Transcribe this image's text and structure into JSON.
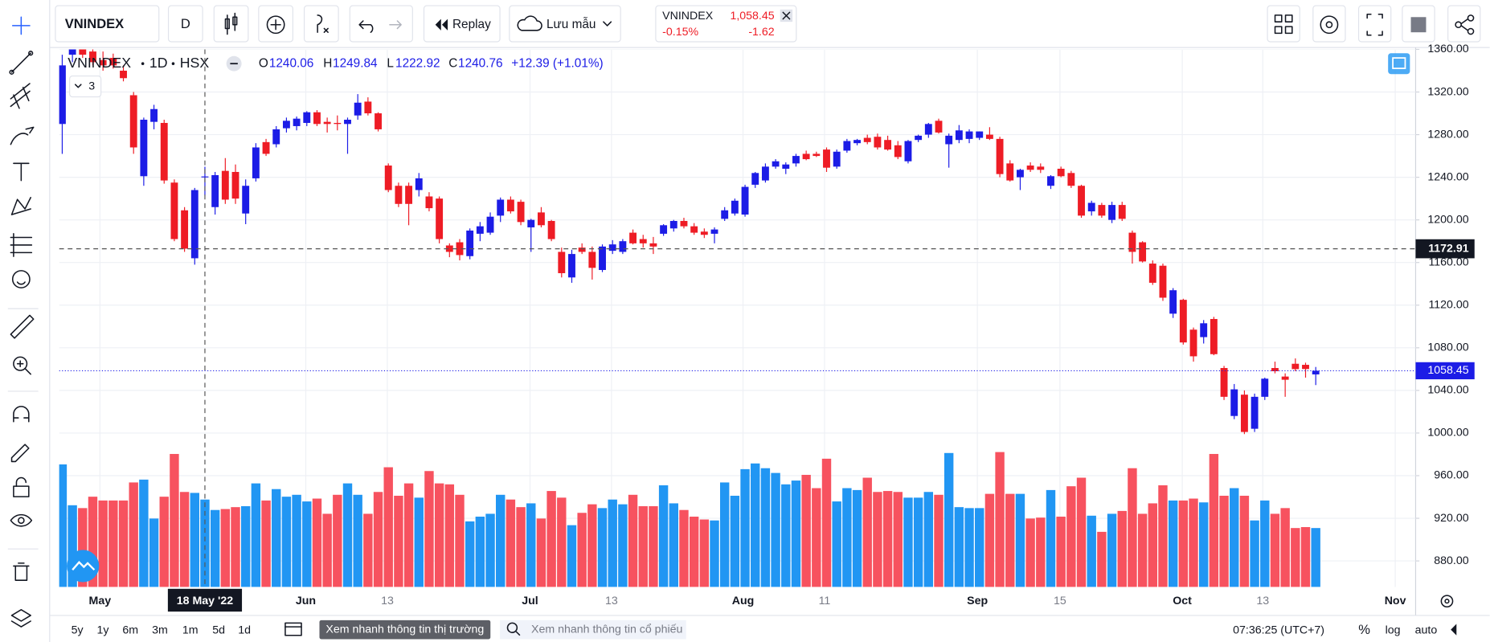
{
  "toolbar": {
    "symbol": "VNINDEX",
    "interval": "D",
    "replay": "Replay",
    "save": "Lưu mẫu"
  },
  "quote": {
    "symbol": "VNINDEX",
    "price": "1,058.45",
    "change_percent": "-0.15%",
    "change": "-1.62"
  },
  "chart_data": {
    "type": "candlestick",
    "symbol": "VNINDEX",
    "interval": "1D",
    "exchange": "HSX",
    "legend_labels": [
      "O",
      "H",
      "L",
      "C"
    ],
    "legend_change": "+12.39 (+1.01%)",
    "indicator_count": "3",
    "open": [
      1290,
      1355,
      1362,
      1358,
      1350,
      1352,
      1340,
      1317,
      1241,
      1292,
      1291,
      1235,
      1209,
      1164,
      1240.06,
      1212,
      1246,
      1245,
      1206,
      1239,
      1273,
      1271,
      1286,
      1288,
      1291,
      1301,
      1292,
      1291,
      1290,
      1298,
      1311,
      1300,
      1251,
      1232,
      1232,
      1228,
      1222,
      1220,
      1176,
      1179,
      1166,
      1187,
      1188,
      1204,
      1219,
      1217,
      1193,
      1207,
      1199,
      1170,
      1146,
      1174,
      1170,
      1153,
      1171,
      1170,
      1188,
      1182,
      1178,
      1187,
      1192,
      1199,
      1194,
      1189,
      1187,
      1201,
      1206,
      1205,
      1233,
      1237,
      1250,
      1248,
      1253,
      1262,
      1262,
      1266,
      1250,
      1265,
      1272,
      1277,
      1278,
      1275,
      1270,
      1255,
      1275,
      1280,
      1293,
      1271,
      1275,
      1276,
      1277,
      1280,
      1276,
      1253,
      1240,
      1251,
      1250,
      1232,
      1248,
      1244,
      1232,
      1208,
      1214,
      1200,
      1214,
      1188,
      1179,
      1159,
      1157,
      1112,
      1125,
      1097,
      1090,
      1107,
      1061,
      1016,
      1036,
      1004,
      1034,
      1061,
      1053,
      1065,
      1064,
      1055
    ],
    "high": [
      1355,
      1362,
      1365,
      1362,
      1358,
      1356,
      1345,
      1320,
      1296,
      1308,
      1294,
      1238,
      1212,
      1230,
      1249.84,
      1245,
      1258,
      1252,
      1238,
      1272,
      1276,
      1288,
      1296,
      1297,
      1302,
      1303,
      1296,
      1298,
      1296,
      1318,
      1315,
      1301,
      1253,
      1235,
      1235,
      1244,
      1226,
      1222,
      1178,
      1182,
      1192,
      1198,
      1207,
      1221,
      1222,
      1219,
      1201,
      1212,
      1200,
      1174,
      1172,
      1178,
      1175,
      1177,
      1181,
      1182,
      1191,
      1186,
      1184,
      1196,
      1200,
      1202,
      1197,
      1192,
      1193,
      1212,
      1220,
      1233,
      1245,
      1253,
      1257,
      1254,
      1262,
      1265,
      1264,
      1268,
      1266,
      1276,
      1276,
      1280,
      1281,
      1279,
      1274,
      1275,
      1280,
      1291,
      1295,
      1281,
      1289,
      1285,
      1283,
      1287,
      1278,
      1256,
      1248,
      1254,
      1253,
      1242,
      1250,
      1246,
      1233,
      1218,
      1216,
      1217,
      1217,
      1190,
      1180,
      1162,
      1159,
      1136,
      1126,
      1099,
      1106,
      1109,
      1063,
      1046,
      1040,
      1037,
      1052,
      1067,
      1056,
      1070,
      1066,
      1062
    ],
    "low": [
      1262,
      1348,
      1352,
      1345,
      1340,
      1342,
      1330,
      1262,
      1232,
      1285,
      1234,
      1180,
      1170,
      1158,
      1222.92,
      1205,
      1215,
      1215,
      1196,
      1236,
      1260,
      1268,
      1282,
      1284,
      1288,
      1288,
      1282,
      1284,
      1262,
      1294,
      1298,
      1283,
      1226,
      1212,
      1195,
      1222,
      1208,
      1178,
      1165,
      1162,
      1163,
      1180,
      1186,
      1198,
      1206,
      1195,
      1170,
      1193,
      1180,
      1146,
      1141,
      1168,
      1144,
      1151,
      1168,
      1168,
      1177,
      1174,
      1168,
      1185,
      1189,
      1192,
      1186,
      1183,
      1178,
      1199,
      1204,
      1203,
      1230,
      1235,
      1248,
      1243,
      1250,
      1256,
      1259,
      1245,
      1248,
      1263,
      1270,
      1271,
      1266,
      1265,
      1257,
      1253,
      1273,
      1277,
      1281,
      1249,
      1272,
      1272,
      1275,
      1275,
      1240,
      1236,
      1228,
      1245,
      1244,
      1229,
      1240,
      1230,
      1202,
      1204,
      1202,
      1197,
      1199,
      1159,
      1160,
      1139,
      1124,
      1108,
      1083,
      1067,
      1084,
      1073,
      1031,
      1013,
      999,
      1001,
      1031,
      1056,
      1034,
      1058,
      1052,
      1045
    ],
    "close": [
      1345,
      1360,
      1355,
      1348,
      1345,
      1345,
      1333,
      1268,
      1294,
      1304,
      1237,
      1182,
      1173,
      1228,
      1240.76,
      1242,
      1219,
      1220,
      1232,
      1268,
      1262,
      1285,
      1293,
      1295,
      1301,
      1290,
      1290,
      1290,
      1294,
      1310,
      1300,
      1285,
      1228,
      1215,
      1215,
      1239,
      1211,
      1182,
      1170,
      1167,
      1190,
      1194,
      1203,
      1219,
      1208,
      1198,
      1200,
      1195,
      1182,
      1150,
      1168,
      1170,
      1155,
      1175,
      1177,
      1180,
      1178,
      1178,
      1175,
      1195,
      1199,
      1194,
      1188,
      1186,
      1191,
      1209,
      1218,
      1231,
      1244,
      1250,
      1255,
      1252,
      1260,
      1257,
      1260,
      1249,
      1264,
      1274,
      1275,
      1273,
      1268,
      1266,
      1259,
      1274,
      1279,
      1290,
      1282,
      1279,
      1284,
      1283,
      1283,
      1276,
      1243,
      1237,
      1247,
      1247,
      1247,
      1241,
      1241,
      1232,
      1204,
      1216,
      1204,
      1214,
      1201,
      1170,
      1161,
      1141,
      1127,
      1134,
      1085,
      1072,
      1103,
      1074,
      1034,
      1041,
      1001,
      1034,
      1051,
      1058,
      1050,
      1060,
      1060.07,
      1058.45
    ],
    "volume": [
      129,
      86,
      83,
      95,
      91,
      91,
      91,
      110,
      113,
      72,
      95,
      140,
      100,
      99,
      92,
      81,
      82,
      84,
      85,
      109,
      91,
      103,
      95,
      97,
      90,
      93,
      77,
      97,
      109,
      97,
      77,
      100,
      126,
      96,
      109,
      94,
      122,
      109,
      108,
      97,
      69,
      74,
      77,
      97,
      92,
      84,
      88,
      72,
      101,
      94,
      65,
      78,
      87,
      83,
      92,
      87,
      97,
      85,
      85,
      107,
      88,
      81,
      74,
      71,
      70,
      110,
      96,
      124,
      130,
      125,
      120,
      108,
      112,
      118,
      104,
      135,
      90,
      104,
      102,
      115,
      100,
      101,
      100,
      94,
      94,
      100,
      97,
      141,
      84,
      83,
      83,
      98,
      142,
      98,
      98,
      72,
      73,
      102,
      74,
      106,
      115,
      75,
      58,
      77,
      80,
      125,
      77,
      88,
      107,
      91,
      91,
      93,
      89,
      140,
      96,
      104,
      96,
      70,
      91,
      77,
      83,
      62,
      63,
      62
    ],
    "volume_lim": [
      0,
      150
    ],
    "xlim": [
      -0.3,
      132.8
    ],
    "xticks": [
      {
        "value": 3.7,
        "label": "May"
      },
      {
        "value": 23.9,
        "label": "Jun"
      },
      {
        "value": 31.9,
        "label": "13"
      },
      {
        "value": 45.9,
        "label": "Jul"
      },
      {
        "value": 53.9,
        "label": "13"
      },
      {
        "value": 66.8,
        "label": "Aug"
      },
      {
        "value": 74.8,
        "label": "11"
      },
      {
        "value": 89.8,
        "label": "Sep"
      },
      {
        "value": 97.9,
        "label": "15"
      },
      {
        "value": 109.9,
        "label": "Oct"
      },
      {
        "value": 117.8,
        "label": "13"
      },
      {
        "value": 130.8,
        "label": "Nov"
      }
    ],
    "ylim": [
      855.6,
      1360
    ],
    "yticks": [
      {
        "value": 880,
        "label": "880.00"
      },
      {
        "value": 920,
        "label": "920.00"
      },
      {
        "value": 960,
        "label": "960.00"
      },
      {
        "value": 1000,
        "label": "1000.00"
      },
      {
        "value": 1040,
        "label": "1040.00"
      },
      {
        "value": 1080,
        "label": "1080.00"
      },
      {
        "value": 1120,
        "label": "1120.00"
      },
      {
        "value": 1160,
        "label": "1160.00"
      },
      {
        "value": 1200,
        "label": "1200.00"
      },
      {
        "value": 1240,
        "label": "1240.00"
      },
      {
        "value": 1280,
        "label": "1280.00"
      },
      {
        "value": 1320,
        "label": "1320.00"
      },
      {
        "value": 1360,
        "label": "1360.00"
      }
    ],
    "grid": true,
    "crosshair": {
      "index": 14,
      "price": 1172.91,
      "date_label": "18 May '22"
    },
    "last_price": 1058.45,
    "up_color": "#1c1ce6",
    "down_color": "#ee1c25",
    "volume_up_color": "#2196f3",
    "volume_down_color": "#f7525f"
  },
  "bottom_bar": {
    "ranges": [
      "5y",
      "1y",
      "6m",
      "3m",
      "1m",
      "5d",
      "1d"
    ],
    "market_button": "Xem nhanh thông tin thị trường",
    "search_placeholder": "Xem nhanh thông tin cổ phiếu",
    "clock": "07:36:25 (UTC+7)",
    "percent": "%",
    "log": "log",
    "auto": "auto"
  }
}
